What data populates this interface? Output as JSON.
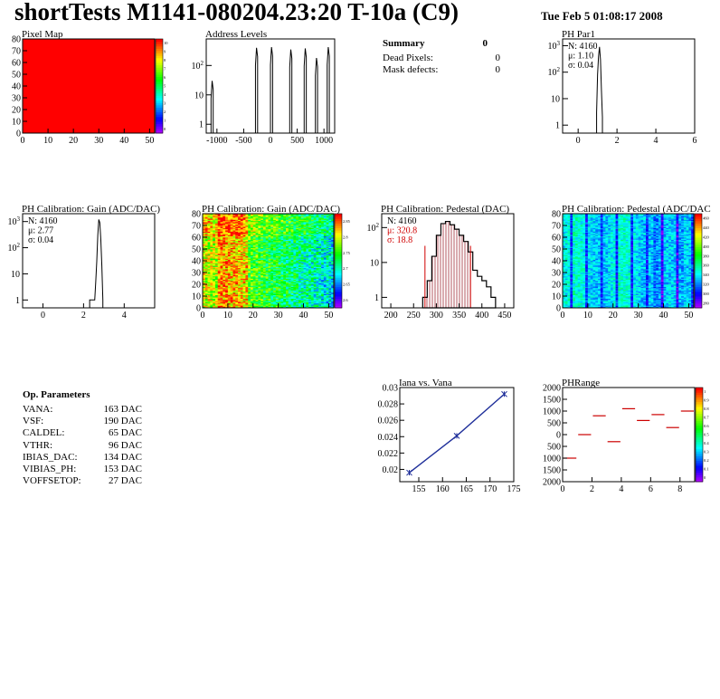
{
  "header": {
    "title": "shortTests M1141-080204.23:20 T-10a (C9)",
    "date": "Tue Feb  5 01:08:17 2008"
  },
  "summary": {
    "heading": "Summary",
    "heading_value": "0",
    "rows": [
      {
        "label": "Dead Pixels:",
        "value": "0"
      },
      {
        "label": "Mask defects:",
        "value": "0"
      }
    ]
  },
  "op_parameters": {
    "heading": "Op. Parameters",
    "rows": [
      {
        "label": "VANA:",
        "value": "163 DAC"
      },
      {
        "label": "VSF:",
        "value": "190 DAC"
      },
      {
        "label": "CALDEL:",
        "value": "65 DAC"
      },
      {
        "label": "VTHR:",
        "value": "96 DAC"
      },
      {
        "label": "IBIAS_DAC:",
        "value": "134 DAC"
      },
      {
        "label": "VIBIAS_PH:",
        "value": "153 DAC"
      },
      {
        "label": "VOFFSETOP:",
        "value": "27 DAC"
      }
    ]
  },
  "chart_data": [
    {
      "id": "pixel_map",
      "type": "heatmap",
      "title": "Pixel Map",
      "xlim": [
        0,
        52
      ],
      "ylim": [
        0,
        80
      ],
      "xticks": [
        "0",
        "10",
        "20",
        "30",
        "40",
        "50"
      ],
      "yticks": [
        "0",
        "10",
        "20",
        "30",
        "40",
        "50",
        "60",
        "70",
        "80"
      ],
      "zlim": [
        0,
        10
      ],
      "ztick_labels": [
        "0",
        "1",
        "2",
        "3",
        "4",
        "5",
        "6",
        "7",
        "8",
        "9",
        "10"
      ],
      "uniform_value": 10,
      "fill_color": "#ff0000"
    },
    {
      "id": "address_levels",
      "type": "line",
      "title": "Address Levels",
      "xlim": [
        -1200,
        1200
      ],
      "ylog": true,
      "ylim": [
        0.5,
        800
      ],
      "xticks": [
        "-1000",
        "-500",
        "0",
        "500",
        "1000"
      ],
      "yticks": [
        "1",
        "10",
        "10^2"
      ],
      "peaks": [
        {
          "x": -1090,
          "y": 30
        },
        {
          "x": -260,
          "y": 400
        },
        {
          "x": 20,
          "y": 420
        },
        {
          "x": 380,
          "y": 350
        },
        {
          "x": 650,
          "y": 380
        },
        {
          "x": 860,
          "y": 180
        },
        {
          "x": 1080,
          "y": 420
        }
      ]
    },
    {
      "id": "ph_par1",
      "type": "line",
      "title": "PH Par1",
      "xlim": [
        -0.8,
        6
      ],
      "ylog": true,
      "ylim": [
        0.5,
        1800
      ],
      "xticks": [
        "0",
        "2",
        "4",
        "6"
      ],
      "yticks": [
        "1",
        "10",
        "10^2",
        "10^3"
      ],
      "stats": [
        {
          "label": "N:",
          "value": "4160"
        },
        {
          "label": "μ:",
          "value": "1.10"
        },
        {
          "label": "σ:",
          "value": "0.04"
        }
      ],
      "x": [
        0.95,
        1.0,
        1.05,
        1.1,
        1.15,
        1.2,
        1.25
      ],
      "y": [
        3,
        80,
        400,
        900,
        300,
        20,
        2
      ]
    },
    {
      "id": "gain_1d",
      "type": "line",
      "title": "PH Calibration: Gain (ADC/DAC)",
      "xlim": [
        -1,
        5.5
      ],
      "ylog": true,
      "ylim": [
        0.5,
        2000
      ],
      "xticks": [
        "0",
        "2",
        "4"
      ],
      "yticks": [
        "1",
        "10",
        "10^2",
        "10^3"
      ],
      "stats": [
        {
          "label": "N:",
          "value": "4160"
        },
        {
          "label": "μ:",
          "value": "2.77"
        },
        {
          "label": "σ:",
          "value": "0.04"
        }
      ],
      "x": [
        2.3,
        2.55,
        2.6,
        2.65,
        2.7,
        2.75,
        2.8,
        2.85,
        2.9,
        2.95
      ],
      "y": [
        1,
        1,
        5,
        30,
        300,
        1200,
        900,
        200,
        20,
        1
      ]
    },
    {
      "id": "gain_2d",
      "type": "heatmap",
      "title": "PH Calibration: Gain (ADC/DAC)",
      "xlim": [
        0,
        52
      ],
      "ylim": [
        0,
        80
      ],
      "xticks": [
        "0",
        "10",
        "20",
        "30",
        "40",
        "50"
      ],
      "yticks": [
        "0",
        "10",
        "20",
        "30",
        "40",
        "50",
        "60",
        "70",
        "80"
      ],
      "zlim": [
        2.55,
        2.85
      ],
      "ztick_labels": [
        "2.6",
        "2.65",
        "2.7",
        "2.75",
        "2.8",
        "2.85"
      ]
    },
    {
      "id": "pedestal_1d",
      "type": "bar",
      "title": "PH Calibration: Pedestal (DAC)",
      "xlim": [
        180,
        470
      ],
      "ylog": true,
      "ylim": [
        0.5,
        250
      ],
      "xticks": [
        "200",
        "250",
        "300",
        "350",
        "400",
        "450"
      ],
      "yticks": [
        "1",
        "10",
        "10^2"
      ],
      "stats": [
        {
          "label": "N:",
          "value": "4160"
        },
        {
          "label": "μ:",
          "value": "320.8"
        },
        {
          "label": "σ:",
          "value": "18.8"
        }
      ],
      "fit_range": [
        275,
        375
      ],
      "x": [
        270,
        280,
        290,
        300,
        310,
        320,
        330,
        340,
        350,
        360,
        370,
        380,
        390,
        400,
        410,
        420
      ],
      "y": [
        1,
        3,
        15,
        60,
        130,
        150,
        120,
        90,
        60,
        40,
        20,
        6,
        4,
        3,
        2,
        1
      ]
    },
    {
      "id": "pedestal_2d",
      "type": "heatmap",
      "title": "PH Calibration: Pedestal (ADC/DAC",
      "xlim": [
        0,
        52
      ],
      "ylim": [
        0,
        80
      ],
      "xticks": [
        "0",
        "10",
        "20",
        "30",
        "40",
        "50"
      ],
      "yticks": [
        "0",
        "10",
        "20",
        "30",
        "40",
        "50",
        "60",
        "70",
        "80"
      ],
      "zlim": [
        260,
        480
      ],
      "ztick_labels": [
        "280",
        "300",
        "320",
        "340",
        "360",
        "380",
        "400",
        "420",
        "440",
        "460"
      ]
    },
    {
      "id": "iana_vs_vana",
      "type": "line",
      "title": "Iana vs. Vana",
      "xlim": [
        151,
        175
      ],
      "ylim": [
        0.0185,
        0.03
      ],
      "xticks": [
        "155",
        "160",
        "165",
        "170",
        "175"
      ],
      "yticks": [
        "0.02",
        "0.022",
        "0.024",
        "0.026",
        "0.028",
        "0.03"
      ],
      "x": [
        153,
        163,
        173
      ],
      "y": [
        0.0196,
        0.0241,
        0.0292
      ]
    },
    {
      "id": "ph_range",
      "type": "scatter",
      "title": "PHRange",
      "xlim": [
        0,
        9
      ],
      "ylim": [
        -2000,
        2000
      ],
      "xticks": [
        "0",
        "2",
        "4",
        "6",
        "8"
      ],
      "yticks": [
        "2000",
        "1500",
        "1000",
        "500",
        "0",
        "500",
        "1000",
        "1500",
        "2000"
      ],
      "zlim": [
        0,
        1
      ],
      "ztick_labels": [
        "0",
        "0.1",
        "0.2",
        "0.3",
        "0.4",
        "0.5",
        "0.6",
        "0.7",
        "0.8",
        "0.9",
        "1"
      ],
      "x": [
        0.5,
        1.5,
        2.5,
        3.5,
        4.5,
        5.5,
        6.5,
        7.5,
        8.5
      ],
      "y": [
        -1000,
        0,
        800,
        -300,
        1100,
        600,
        850,
        300,
        1000
      ]
    }
  ]
}
